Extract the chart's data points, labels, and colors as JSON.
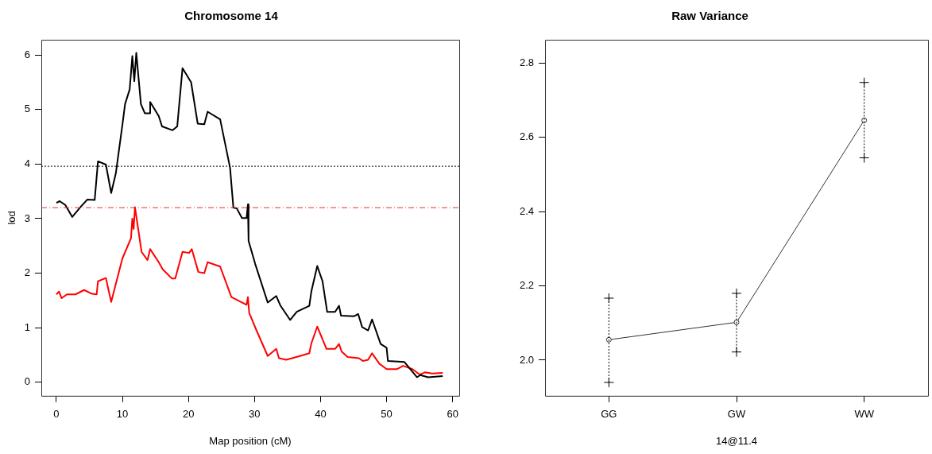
{
  "chart_data": [
    {
      "type": "line",
      "title": "Chromosome 14",
      "xlabel": "Map position (cM)",
      "ylabel": "lod",
      "xlim": [
        -2.28,
        61.0
      ],
      "xticks": [
        0,
        10,
        20,
        30,
        40,
        50,
        60
      ],
      "ylim": [
        -0.25,
        6.28
      ],
      "yticks": [
        0,
        1,
        2,
        3,
        4,
        5,
        6
      ],
      "marker": "none",
      "line_style": "solid",
      "ref_lines": [
        {
          "axis": "y",
          "value": 3.96,
          "color": "#000000",
          "line_style": "dotted"
        },
        {
          "axis": "y",
          "value": 3.2,
          "color": "#e03030",
          "line_style": "dashed"
        }
      ],
      "series": [
        {
          "color": "#000000",
          "x": [
            0,
            0.5,
            1.35,
            2.4,
            3.7,
            4.7,
            5.8,
            6.3,
            7.5,
            8.3,
            9.0,
            10.0,
            10.4,
            11.1,
            11.5,
            11.8,
            12.1,
            12.8,
            13.4,
            14.1,
            14.2,
            15.5,
            16.0,
            17.6,
            18.3,
            19.1,
            20.4,
            21.4,
            22.4,
            22.9,
            24.8,
            26.3,
            26.8,
            27.3,
            28.1,
            28.8,
            29.0,
            29.1,
            30.1,
            32.0,
            33.3,
            33.9,
            35.4,
            36.4,
            38.3,
            38.6,
            39.5,
            40.3,
            41.0,
            42.2,
            42.8,
            43.1,
            45.1,
            45.7,
            46.3,
            47.2,
            47.8,
            49.1,
            50.0,
            50.2,
            52.7,
            54.6,
            55.1,
            56.3,
            58.5
          ],
          "values": [
            3.29,
            3.32,
            3.25,
            3.03,
            3.22,
            3.35,
            3.34,
            4.05,
            3.99,
            3.47,
            3.83,
            4.72,
            5.1,
            5.37,
            5.98,
            5.52,
            6.04,
            5.1,
            4.93,
            4.93,
            5.14,
            4.88,
            4.69,
            4.62,
            4.69,
            5.76,
            5.5,
            4.74,
            4.73,
            4.96,
            4.82,
            3.93,
            3.2,
            3.19,
            3.01,
            3.01,
            3.26,
            2.59,
            2.17,
            1.46,
            1.58,
            1.41,
            1.14,
            1.29,
            1.4,
            1.66,
            2.13,
            1.85,
            1.29,
            1.29,
            1.4,
            1.22,
            1.21,
            1.25,
            1.01,
            0.95,
            1.15,
            0.7,
            0.63,
            0.39,
            0.37,
            0.09,
            0.13,
            0.09,
            0.11
          ]
        },
        {
          "color": "#ff0000",
          "x": [
            0,
            0.4,
            0.8,
            1.6,
            2.9,
            4.2,
            5.4,
            6.1,
            6.3,
            7.5,
            8.3,
            10.0,
            11.3,
            11.5,
            11.7,
            11.9,
            12.9,
            13.8,
            14.2,
            15.5,
            16.1,
            17.5,
            18.0,
            19.1,
            20.1,
            20.5,
            21.5,
            22.4,
            22.9,
            24.8,
            26.5,
            28.8,
            29.0,
            29.2,
            30.3,
            32.0,
            33.3,
            33.7,
            34.8,
            36.9,
            38.3,
            38.6,
            39.5,
            40.9,
            42.2,
            42.8,
            43.2,
            44.1,
            45.8,
            46.4,
            47.2,
            47.8,
            48.9,
            50.0,
            51.6,
            52.5,
            53.9,
            55.0,
            55.8,
            56.9,
            58.5
          ],
          "values": [
            1.61,
            1.66,
            1.54,
            1.61,
            1.61,
            1.69,
            1.62,
            1.61,
            1.85,
            1.91,
            1.47,
            2.27,
            2.64,
            3.0,
            2.81,
            3.21,
            2.39,
            2.24,
            2.44,
            2.2,
            2.07,
            1.9,
            1.9,
            2.39,
            2.37,
            2.44,
            2.02,
            2.0,
            2.2,
            2.12,
            1.56,
            1.42,
            1.56,
            1.27,
            0.95,
            0.48,
            0.61,
            0.44,
            0.41,
            0.48,
            0.53,
            0.71,
            1.02,
            0.61,
            0.61,
            0.7,
            0.56,
            0.46,
            0.44,
            0.39,
            0.41,
            0.53,
            0.34,
            0.24,
            0.24,
            0.3,
            0.24,
            0.14,
            0.18,
            0.16,
            0.17
          ]
        }
      ]
    },
    {
      "type": "line",
      "title": "Raw Variance",
      "xlabel": "14@11.4",
      "categories": [
        "GG",
        "GW",
        "WW"
      ],
      "ylim": [
        1.904,
        2.863
      ],
      "yticks": [
        {
          "value": 2.0,
          "label": "2.0"
        },
        {
          "value": 2.2,
          "label": "2.2"
        },
        {
          "value": 2.4,
          "label": "2.4"
        },
        {
          "value": 2.6,
          "label": "2.6"
        },
        {
          "value": 2.8,
          "label": "2.8"
        }
      ],
      "marker": "circle",
      "line_style": "solid",
      "series": [
        {
          "color": "#333333",
          "values": [
            2.055,
            2.102,
            2.646
          ],
          "errors": [
            [
              1.94,
              2.167
            ],
            [
              2.022,
              2.18
            ],
            [
              2.545,
              2.748
            ]
          ]
        }
      ]
    }
  ]
}
